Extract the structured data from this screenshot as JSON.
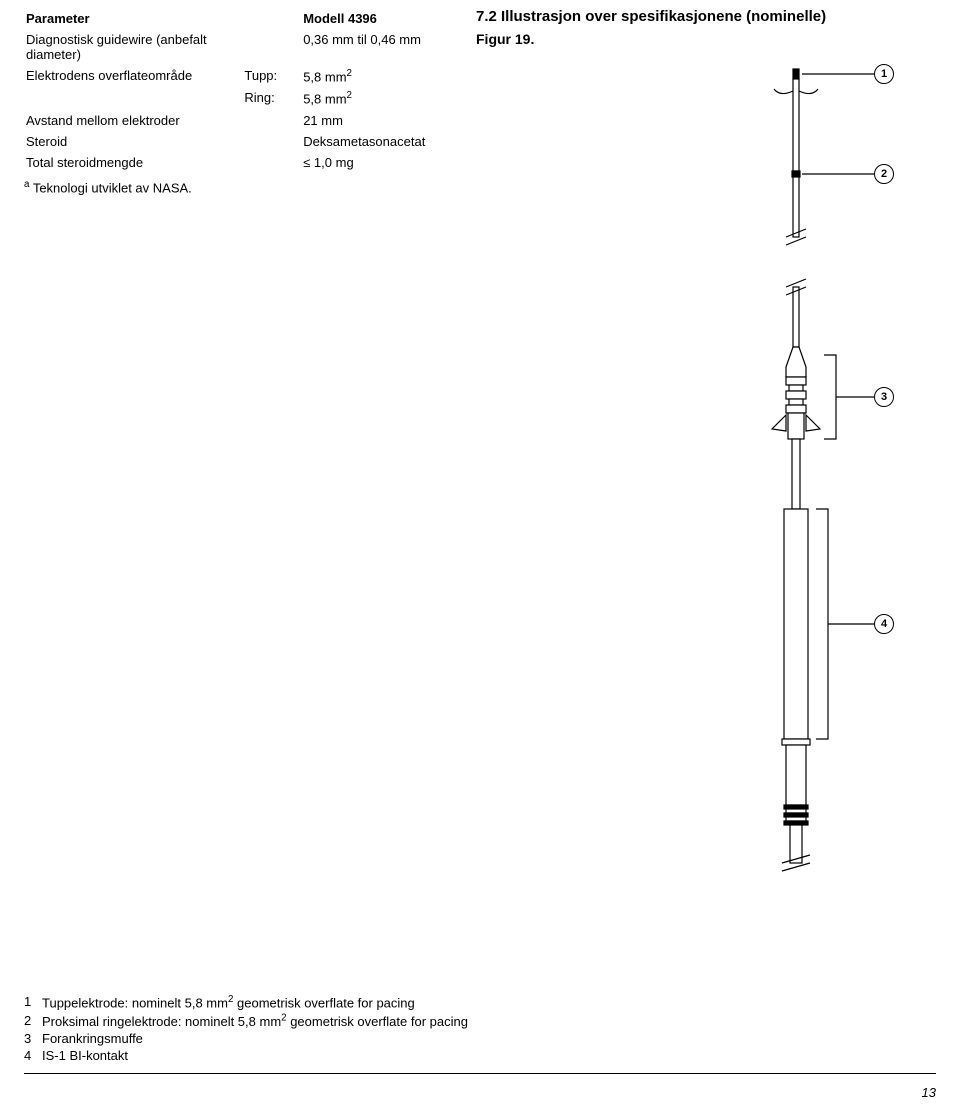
{
  "table": {
    "header_param": "Parameter",
    "header_model": "Modell 4396",
    "rows": [
      {
        "label": "Diagnostisk guidewire (anbefalt diameter)",
        "sub": "",
        "value": "0,36 mm til 0,46 mm"
      },
      {
        "label": "Elektrodens overflateområde",
        "sub": "Tupp:",
        "value_html": "5,8 mm<sup>2</sup>"
      },
      {
        "label": "",
        "sub": "Ring:",
        "value_html": "5,8 mm<sup>2</sup>"
      },
      {
        "label": "Avstand mellom elektroder",
        "sub": "",
        "value": "21 mm"
      },
      {
        "label": "Steroid",
        "sub": "",
        "value": "Deksametasonacetat"
      },
      {
        "label": "Total steroidmengde",
        "sub": "",
        "value": "≤ 1,0 mg"
      }
    ]
  },
  "footnote_html": "<sup>a</sup> Teknologi utviklet av NASA.",
  "section_heading": "7.2 Illustrasjon over spesifikasjonene (nominelle)",
  "figure_label": "Figur 19.",
  "callouts": {
    "c1": "1",
    "c2": "2",
    "c3": "3",
    "c4": "4"
  },
  "legend": {
    "items": [
      {
        "num": "1",
        "text_html": "Tuppelektrode: nominelt 5,8 mm<sup>2</sup> geometrisk overflate for pacing"
      },
      {
        "num": "2",
        "text_html": "Proksimal ringelektrode: nominelt 5,8 mm<sup>2</sup> geometrisk overflate for pacing",
        "wrap": true
      },
      {
        "num": "3",
        "text_html": "Forankringsmuffe"
      },
      {
        "num": "4",
        "text_html": "IS-1 BI-kontakt"
      }
    ]
  },
  "page_number": "13",
  "style": {
    "stroke": "#000000",
    "stroke_width": 1.2,
    "fill": "#ffffff"
  }
}
